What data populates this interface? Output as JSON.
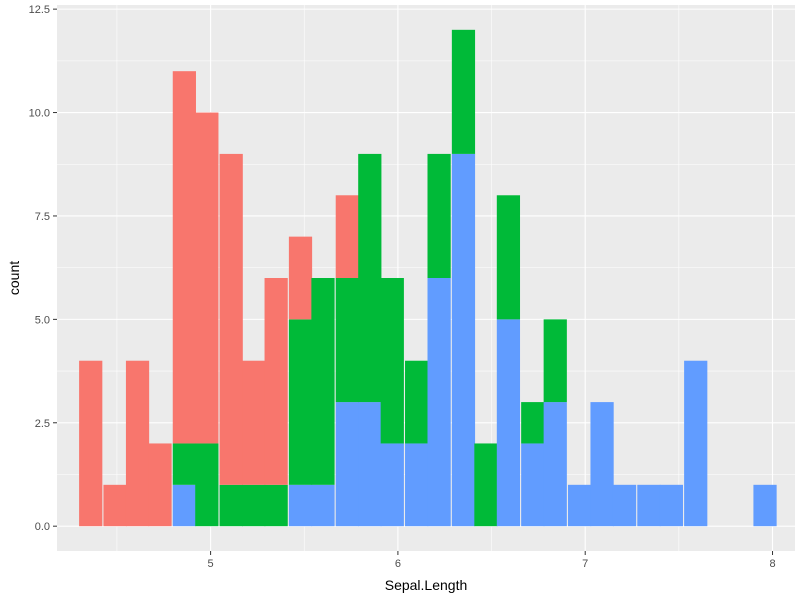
{
  "chart_data": {
    "type": "bar",
    "stacked": true,
    "xlabel": "Sepal.Length",
    "ylabel": "count",
    "xlim": [
      4.18,
      8.12
    ],
    "ylim": [
      -0.6,
      12.6
    ],
    "x_ticks": [
      5,
      6,
      7,
      8
    ],
    "x_tick_labels": [
      "5",
      "6",
      "7",
      "8"
    ],
    "y_ticks": [
      0,
      2.5,
      5,
      7.5,
      10,
      12.5
    ],
    "y_tick_labels": [
      "0.0",
      "2.5",
      "5.0",
      "7.5",
      "10.0",
      "12.5"
    ],
    "grid": true,
    "legend": "none",
    "bin_width": 0.124,
    "bins": [
      4.36,
      4.49,
      4.61,
      4.73,
      4.86,
      4.98,
      5.11,
      5.23,
      5.35,
      5.48,
      5.6,
      5.73,
      5.85,
      5.97,
      6.1,
      6.22,
      6.35,
      6.47,
      6.59,
      6.72,
      6.84,
      6.97,
      7.09,
      7.21,
      7.34,
      7.46,
      7.59,
      7.71,
      7.83,
      7.96
    ],
    "series": [
      {
        "color": "#619CFF",
        "values": [
          0,
          0,
          0,
          0,
          1,
          0,
          0,
          0,
          0,
          1,
          1,
          3,
          3,
          2,
          2,
          6,
          9,
          0,
          5,
          2,
          3,
          1,
          3,
          1,
          1,
          1,
          4,
          0,
          0,
          1
        ]
      },
      {
        "color": "#00BA38",
        "values": [
          0,
          0,
          0,
          0,
          1,
          2,
          1,
          1,
          1,
          4,
          5,
          3,
          6,
          4,
          2,
          3,
          3,
          2,
          3,
          1,
          2,
          0,
          0,
          0,
          0,
          0,
          0,
          0,
          0,
          0
        ]
      },
      {
        "color": "#F8766D",
        "values": [
          4,
          1,
          4,
          2,
          9,
          8,
          8,
          3,
          5,
          2,
          0,
          2,
          0,
          0,
          0,
          0,
          0,
          0,
          0,
          0,
          0,
          0,
          0,
          0,
          0,
          0,
          0,
          0,
          0,
          0
        ]
      }
    ]
  },
  "colors": {
    "panel_background": "#EBEBEB",
    "grid": "#FFFFFF",
    "tick": "#333333",
    "tick_label": "#4D4D4D"
  }
}
